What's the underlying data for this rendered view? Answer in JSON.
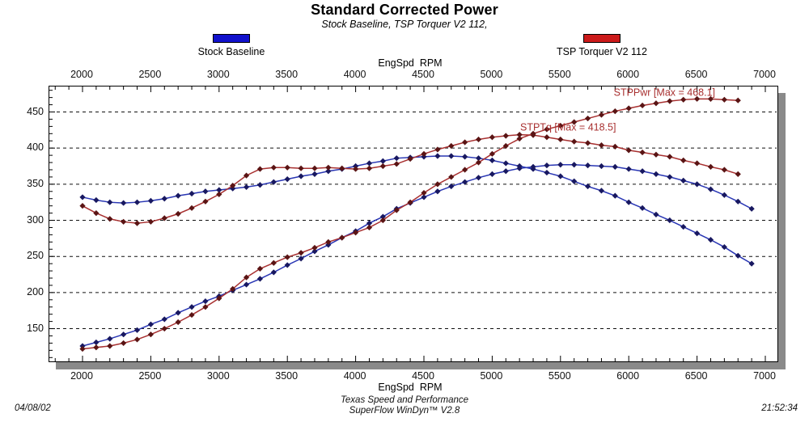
{
  "title": "Standard Corrected Power",
  "subtitle": "Stock Baseline, TSP Torquer V2 112,",
  "legend": [
    {
      "label": "Stock Baseline",
      "color": "#1111cc"
    },
    {
      "label": "TSP Torquer V2 112",
      "color": "#cc1a1a"
    }
  ],
  "footer": {
    "date": "04/08/02",
    "center_line1": "Texas Speed and Performance",
    "center_line2": "SuperFlow WinDyn™ V2.8",
    "time": "21:52:34"
  },
  "chart_data": {
    "type": "line",
    "title": "Standard Corrected Power",
    "subtitle": "Stock Baseline, TSP Torquer V2 112,",
    "xlabel_top": "EngSpd  RPM",
    "xlabel_bottom": "EngSpd  RPM",
    "x_axis": {
      "min": 2000,
      "max": 7000,
      "label_step": 500,
      "minor_step": 100,
      "tick_start": 1800
    },
    "y_axis": {
      "label_min": 150,
      "label_max": 450,
      "label_step": 50,
      "minor_step": 10,
      "minor_min": 110,
      "minor_max": 480
    },
    "grid": {
      "style": "dashed",
      "color": "#111111"
    },
    "legend_position": "top",
    "annotations": [
      {
        "text": "STPPwr [Max = 468.1]",
        "rpm": 5890,
        "value": 477,
        "color": "#a83030"
      },
      {
        "text": "STPTq [Max = 418.5]",
        "rpm": 5205,
        "value": 428.5,
        "color": "#a83030"
      }
    ],
    "series": [
      {
        "name": "Stock Baseline Torque",
        "line_color": "#2936b4",
        "marker_color": "#181860",
        "marker": "diamond",
        "x": [
          2000,
          2100,
          2200,
          2300,
          2400,
          2500,
          2600,
          2700,
          2800,
          2900,
          3000,
          3100,
          3200,
          3300,
          3400,
          3500,
          3600,
          3700,
          3800,
          3900,
          4000,
          4100,
          4200,
          4300,
          4400,
          4500,
          4600,
          4700,
          4800,
          4900,
          5000,
          5100,
          5200,
          5300,
          5400,
          5500,
          5600,
          5700,
          5800,
          5900,
          6000,
          6100,
          6200,
          6300,
          6400,
          6500,
          6600,
          6700,
          6800,
          6900
        ],
        "values": [
          332,
          328,
          325,
          324,
          325,
          327,
          330,
          334,
          337,
          340,
          342,
          344,
          346,
          349,
          353,
          357,
          361,
          364,
          368,
          371,
          375,
          379,
          382,
          386,
          387,
          388,
          389,
          389,
          388,
          386,
          383,
          379,
          375,
          371,
          366,
          361,
          354,
          347,
          341,
          334,
          325,
          317,
          308,
          300,
          291,
          282,
          273,
          263,
          251,
          240
        ]
      },
      {
        "name": "Stock Baseline Power",
        "line_color": "#2936b4",
        "marker_color": "#181860",
        "marker": "diamond",
        "x": [
          2000,
          2100,
          2200,
          2300,
          2400,
          2500,
          2600,
          2700,
          2800,
          2900,
          3000,
          3100,
          3200,
          3300,
          3400,
          3500,
          3600,
          3700,
          3800,
          3900,
          4000,
          4100,
          4200,
          4300,
          4400,
          4500,
          4600,
          4700,
          4800,
          4900,
          5000,
          5100,
          5200,
          5300,
          5400,
          5500,
          5600,
          5700,
          5800,
          5900,
          6000,
          6100,
          6200,
          6300,
          6400,
          6500,
          6600,
          6700,
          6800,
          6900
        ],
        "values": [
          126,
          131,
          136,
          142,
          148,
          156,
          163,
          172,
          180,
          188,
          195,
          203,
          211,
          219,
          228,
          238,
          247,
          257,
          266,
          276,
          285,
          296,
          305,
          316,
          324,
          332,
          340,
          347,
          353,
          359,
          364,
          368,
          372,
          374,
          376,
          377,
          377,
          376,
          375,
          374,
          371,
          368,
          364,
          360,
          355,
          350,
          343,
          335,
          326,
          316
        ]
      },
      {
        "name": "TSP Torquer V2 112 Torque (STPTq)",
        "line_color": "#a83030",
        "marker_color": "#5a1414",
        "marker": "diamond",
        "x": [
          2000,
          2100,
          2200,
          2300,
          2400,
          2500,
          2600,
          2700,
          2800,
          2900,
          3000,
          3100,
          3200,
          3300,
          3400,
          3500,
          3600,
          3700,
          3800,
          3900,
          4000,
          4100,
          4200,
          4300,
          4400,
          4500,
          4600,
          4700,
          4800,
          4900,
          5000,
          5100,
          5200,
          5300,
          5400,
          5500,
          5600,
          5700,
          5800,
          5900,
          6000,
          6100,
          6200,
          6300,
          6400,
          6500,
          6600,
          6700,
          6800
        ],
        "values": [
          320,
          310,
          302,
          298,
          296,
          298,
          303,
          309,
          317,
          326,
          336,
          348,
          362,
          371,
          373,
          373,
          372,
          372,
          373,
          372,
          371,
          372,
          375,
          378,
          385,
          392,
          398,
          403,
          408,
          412,
          415,
          417,
          418.5,
          418,
          415,
          412,
          409,
          407,
          404,
          402,
          397,
          394,
          391,
          388,
          383,
          379,
          374,
          370,
          364
        ]
      },
      {
        "name": "TSP Torquer V2 112 Power (STPPwr)",
        "line_color": "#a83030",
        "marker_color": "#5a1414",
        "marker": "diamond",
        "x": [
          2000,
          2100,
          2200,
          2300,
          2400,
          2500,
          2600,
          2700,
          2800,
          2900,
          3000,
          3100,
          3200,
          3300,
          3400,
          3500,
          3600,
          3700,
          3800,
          3900,
          4000,
          4100,
          4200,
          4300,
          4400,
          4500,
          4600,
          4700,
          4800,
          4900,
          5000,
          5100,
          5200,
          5300,
          5400,
          5500,
          5600,
          5700,
          5800,
          5900,
          6000,
          6100,
          6200,
          6300,
          6400,
          6500,
          6600,
          6700,
          6800
        ],
        "values": [
          122,
          124,
          126,
          130,
          135,
          142,
          150,
          159,
          169,
          180,
          192,
          205,
          221,
          233,
          241,
          249,
          255,
          262,
          270,
          276,
          283,
          290,
          300,
          314,
          325,
          338,
          350,
          360,
          370,
          380,
          392,
          403,
          413,
          420,
          426,
          431,
          436,
          441,
          446,
          451,
          455,
          459,
          462,
          465,
          467,
          468.1,
          468,
          467,
          466
        ]
      }
    ]
  }
}
